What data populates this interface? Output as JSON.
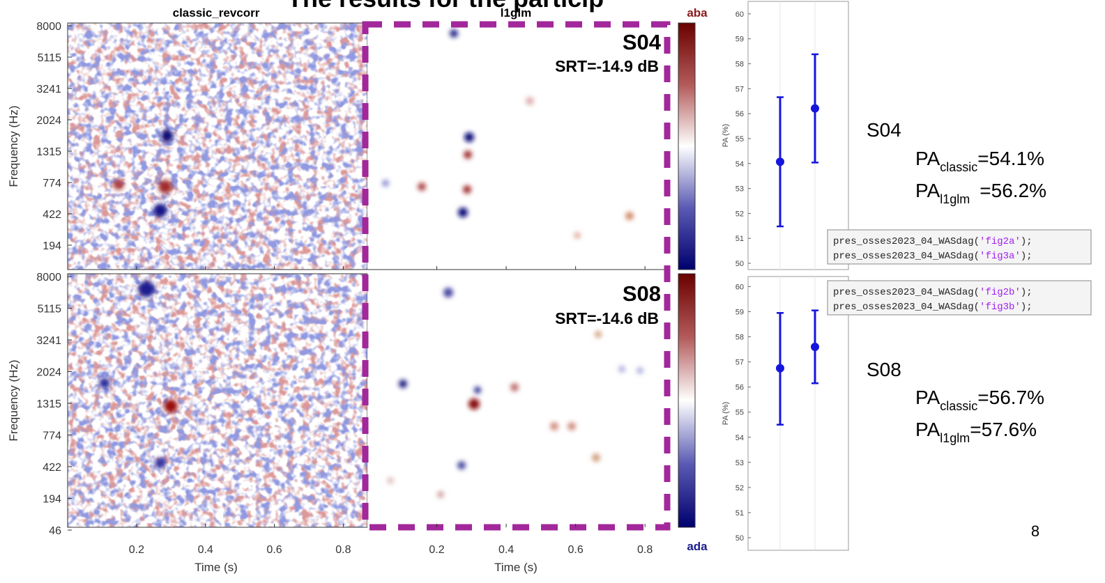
{
  "title": "The results for the particip",
  "heatmaps": {
    "column_titles": [
      "classic_revcorr",
      "l1glm"
    ],
    "y_label": "Frequency (Hz)",
    "x_label": "Time (s)",
    "freq_ticks_top": [
      8000,
      5115,
      3241,
      2024,
      1315,
      774,
      422,
      194
    ],
    "freq_ticks_bottom": [
      8000,
      5115,
      3241,
      2024,
      1315,
      774,
      422,
      194,
      46
    ],
    "time_ticks": [
      0.2,
      0.4,
      0.6,
      0.8
    ],
    "xlim": [
      0,
      0.87
    ],
    "colorbar_labels": [
      "aba",
      "ada"
    ],
    "rows": [
      {
        "subject": "S04",
        "srt": "SRT=-14.9 dB"
      },
      {
        "subject": "S08",
        "srt": "SRT=-14.6 dB"
      }
    ]
  },
  "chart_data": [
    {
      "type": "errorbar",
      "y_label": "PA (%)",
      "color": "#1515dd",
      "values": [
        54.07,
        56.21
      ],
      "lower": [
        51.48,
        54.04
      ],
      "upper": [
        56.66,
        58.38
      ],
      "ylim": [
        49.75,
        60.5
      ],
      "yticks": [
        50,
        51,
        52,
        53,
        54,
        55,
        56,
        57,
        58,
        59,
        60
      ],
      "grid": true
    },
    {
      "type": "errorbar",
      "y_label": "PA (%)",
      "color": "#1515dd",
      "values": [
        56.75,
        57.6
      ],
      "lower": [
        54.5,
        56.15
      ],
      "upper": [
        58.95,
        59.05
      ],
      "ylim": [
        49.5,
        60.4
      ],
      "yticks": [
        50,
        51,
        52,
        53,
        54,
        55,
        56,
        57,
        58,
        59,
        60
      ],
      "grid": true
    }
  ],
  "results": [
    {
      "subject": "S04",
      "classic": {
        "label": "PA",
        "sub": "classic",
        "value": "=54.1%"
      },
      "l1glm": {
        "label": "PA",
        "sub": "l1glm",
        "value": "=56.2%"
      }
    },
    {
      "subject": "S08",
      "classic": {
        "label": "PA",
        "sub": "classic",
        "value": "=56.7%"
      },
      "l1glm": {
        "label": "PA",
        "sub": "l1glm",
        "value": "=57.6%"
      }
    }
  ],
  "code": [
    [
      "pres_osses2023_04_WASdag(",
      "'fig2a'",
      ");"
    ],
    [
      "pres_osses2023_04_WASdag(",
      "'fig3a'",
      ");"
    ],
    [
      "pres_osses2023_04_WASdag(",
      "'fig2b'",
      ");"
    ],
    [
      "pres_osses2023_04_WASdag(",
      "'fig3b'",
      ");"
    ]
  ],
  "page_number": "8"
}
